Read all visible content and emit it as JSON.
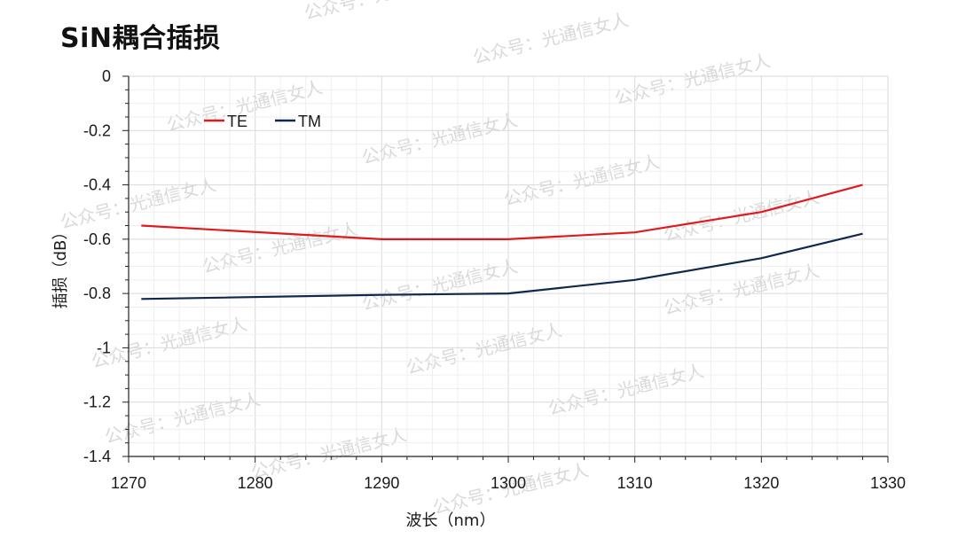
{
  "title": "SiN耦合插损",
  "watermark": "公众号：光通信女人",
  "colors": {
    "TE": "#e0191f",
    "TM": "#10284e",
    "grid": "#e6e6e6",
    "axis": "#222222"
  },
  "chart_data": {
    "type": "line",
    "xlabel": "波长（nm）",
    "ylabel": "插损（dB）",
    "xlim": [
      1270,
      1330
    ],
    "ylim": [
      -1.4,
      0
    ],
    "x_ticks": [
      1270,
      1280,
      1290,
      1300,
      1310,
      1320,
      1330
    ],
    "y_ticks": [
      0,
      -0.2,
      -0.4,
      -0.6,
      -0.8,
      -1,
      -1.2,
      -1.4
    ],
    "x_tick_labels": [
      "1270",
      "1280",
      "1290",
      "1300",
      "1310",
      "1320",
      "1330"
    ],
    "y_tick_labels": [
      "0",
      "-0.2",
      "-0.4",
      "-0.6",
      "-0.8",
      "-1",
      "-1.2",
      "-1.4"
    ],
    "grid": true,
    "legend_position": "top-left",
    "series": [
      {
        "name": "TE",
        "color": "#e0191f",
        "x": [
          1271,
          1290,
          1300,
          1310,
          1320,
          1328
        ],
        "y": [
          -0.55,
          -0.6,
          -0.6,
          -0.575,
          -0.5,
          -0.4
        ]
      },
      {
        "name": "TM",
        "color": "#10284e",
        "x": [
          1271,
          1290,
          1300,
          1310,
          1320,
          1328
        ],
        "y": [
          -0.82,
          -0.805,
          -0.8,
          -0.75,
          -0.67,
          -0.58
        ]
      }
    ]
  }
}
